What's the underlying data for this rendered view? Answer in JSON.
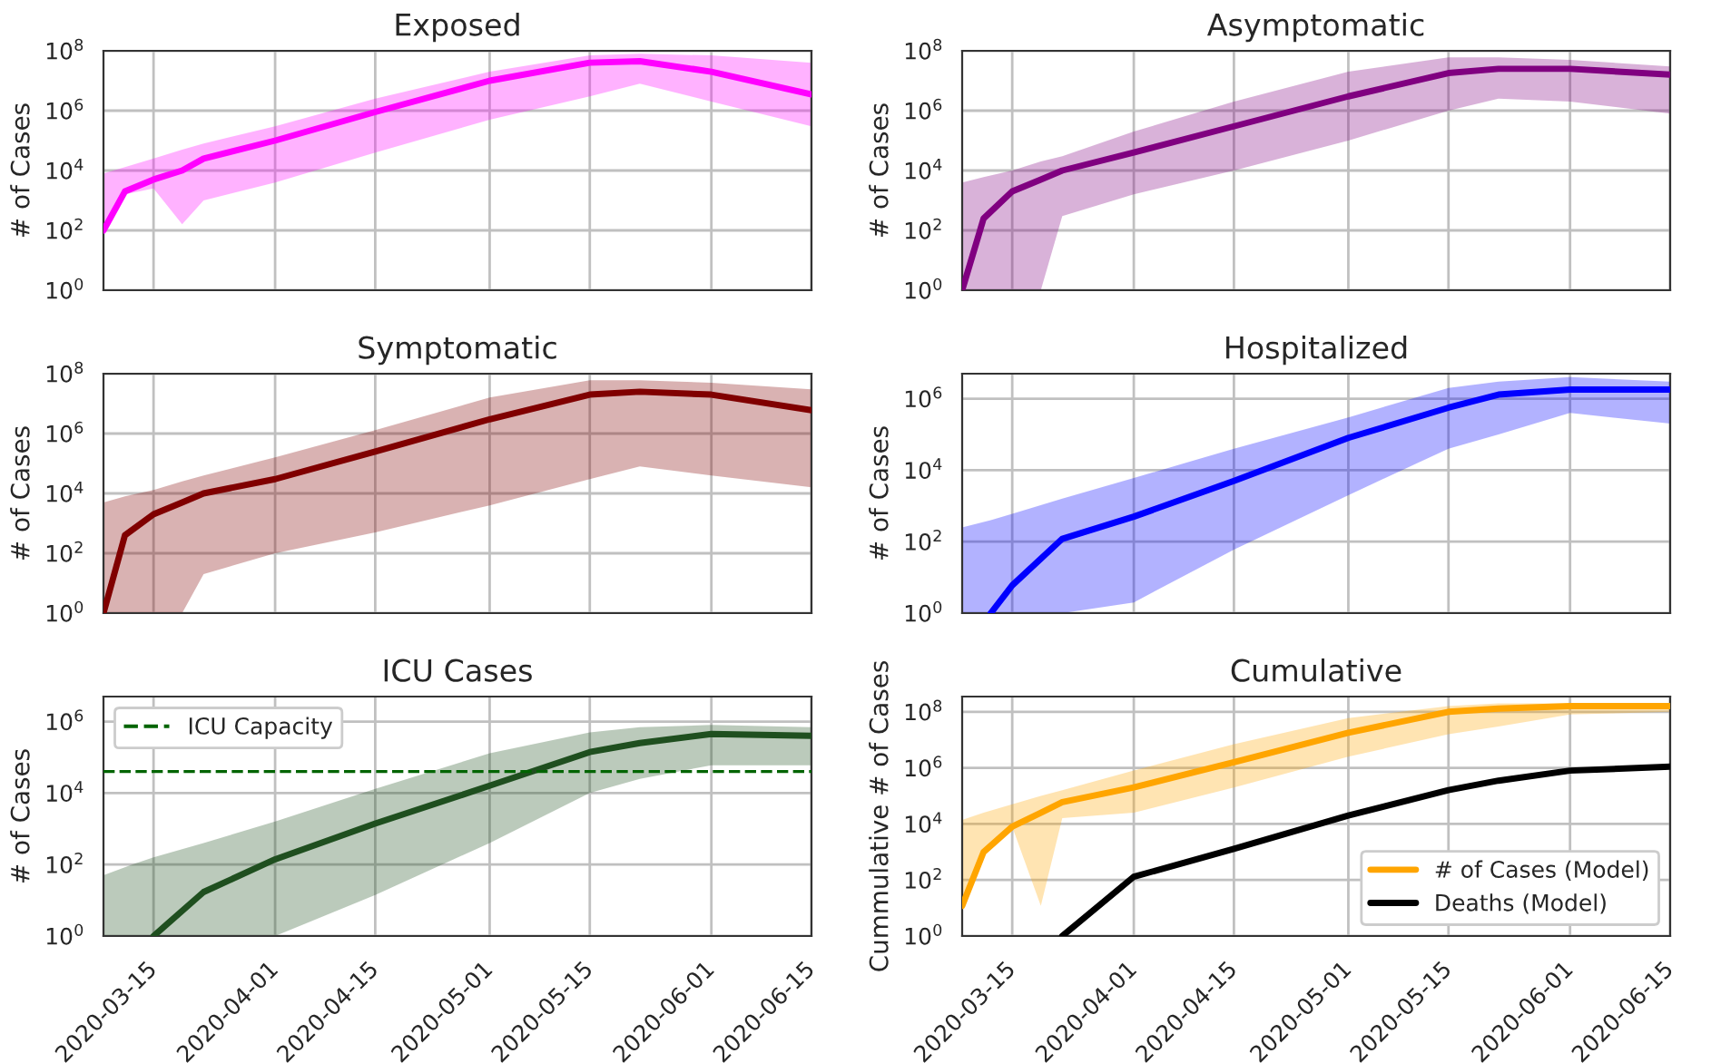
{
  "chart_data": [
    {
      "type": "line",
      "title": "Exposed",
      "ylabel": "# of Cases",
      "log": true,
      "grid": true,
      "tick_labels": "y",
      "x": [
        "2020-03-08",
        "2020-03-11",
        "2020-03-15",
        "2020-03-19",
        "2020-03-22",
        "2020-04-01",
        "2020-04-15",
        "2020-05-01",
        "2020-05-15",
        "2020-05-22",
        "2020-06-01",
        "2020-06-15"
      ],
      "xlim": [
        "2020-03-08",
        "2020-06-15"
      ],
      "xticks": [
        "2020-03-15",
        "2020-04-01",
        "2020-04-15",
        "2020-05-01",
        "2020-05-15",
        "2020-06-01",
        "2020-06-15"
      ],
      "ylim": [
        1,
        100000000
      ],
      "yticks": [
        {
          "value": 1,
          "label": "10$^{0}$"
        },
        {
          "value": 100,
          "label": "10$^{2}$"
        },
        {
          "value": 10000,
          "label": "10$^{4}$"
        },
        {
          "value": 1000000,
          "label": "10$^{6}$"
        },
        {
          "value": 100000000,
          "label": "10$^{8}$"
        }
      ],
      "series": [
        {
          "color": "#ff00ff",
          "values": [
            100,
            2000,
            5000,
            10000,
            25000,
            100000,
            900000,
            10000000,
            40000000,
            45000000,
            20000000,
            3500000
          ],
          "upper": [
            8000,
            13000,
            25000,
            50000,
            80000,
            300000,
            2500000,
            20000000,
            70000000,
            80000000,
            70000000,
            40000000
          ],
          "lower": [
            100,
            1600,
            2500,
            160,
            1000,
            4000,
            40000,
            500000,
            3000000,
            8000000,
            2000000,
            300000
          ]
        }
      ]
    },
    {
      "type": "line",
      "title": "Asymptomatic",
      "ylabel": "# of Cases",
      "log": true,
      "grid": true,
      "tick_labels": "y",
      "x": [
        "2020-03-08",
        "2020-03-11",
        "2020-03-15",
        "2020-03-19",
        "2020-03-22",
        "2020-04-01",
        "2020-04-15",
        "2020-05-01",
        "2020-05-15",
        "2020-05-22",
        "2020-06-01",
        "2020-06-15"
      ],
      "xlim": [
        "2020-03-08",
        "2020-06-15"
      ],
      "xticks": [
        "2020-03-15",
        "2020-04-01",
        "2020-04-15",
        "2020-05-01",
        "2020-05-15",
        "2020-06-01",
        "2020-06-15"
      ],
      "ylim": [
        1,
        100000000
      ],
      "yticks": [
        {
          "value": 1,
          "label": "10$^{0}$"
        },
        {
          "value": 100,
          "label": "10$^{2}$"
        },
        {
          "value": 10000,
          "label": "10$^{4}$"
        },
        {
          "value": 1000000,
          "label": "10$^{6}$"
        },
        {
          "value": 100000000,
          "label": "10$^{8}$"
        }
      ],
      "series": [
        {
          "color": "#800080",
          "values": [
            1,
            250,
            2000,
            5000,
            10000,
            40000,
            300000,
            3000000,
            18000000,
            25000000,
            25000000,
            16000000
          ],
          "upper": [
            4000,
            6000,
            10000,
            20000,
            30000,
            200000,
            2000000,
            20000000,
            60000000,
            60000000,
            50000000,
            30000000
          ],
          "lower": [
            1,
            1,
            1,
            1,
            300,
            1600,
            10000,
            100000,
            1000000,
            2500000,
            2000000,
            800000
          ]
        }
      ]
    },
    {
      "type": "line",
      "title": "Symptomatic",
      "ylabel": "# of Cases",
      "log": true,
      "grid": true,
      "tick_labels": "y",
      "x": [
        "2020-03-08",
        "2020-03-11",
        "2020-03-15",
        "2020-03-19",
        "2020-03-22",
        "2020-04-01",
        "2020-04-15",
        "2020-05-01",
        "2020-05-15",
        "2020-05-22",
        "2020-06-01",
        "2020-06-15"
      ],
      "xlim": [
        "2020-03-08",
        "2020-06-15"
      ],
      "xticks": [
        "2020-03-15",
        "2020-04-01",
        "2020-04-15",
        "2020-05-01",
        "2020-05-15",
        "2020-06-01",
        "2020-06-15"
      ],
      "ylim": [
        1,
        100000000
      ],
      "yticks": [
        {
          "value": 1,
          "label": "10$^{0}$"
        },
        {
          "value": 100,
          "label": "10$^{2}$"
        },
        {
          "value": 10000,
          "label": "10$^{4}$"
        },
        {
          "value": 1000000,
          "label": "10$^{6}$"
        },
        {
          "value": 100000000,
          "label": "10$^{8}$"
        }
      ],
      "series": [
        {
          "color": "#800000",
          "values": [
            1,
            400,
            2000,
            5000,
            10000,
            30000,
            250000,
            3000000,
            20000000,
            25000000,
            20000000,
            6000000
          ],
          "upper": [
            5000,
            8000,
            13000,
            25000,
            40000,
            160000,
            1300000,
            16000000,
            60000000,
            60000000,
            50000000,
            30000000
          ],
          "lower": [
            1,
            1,
            1,
            1,
            20,
            100,
            500,
            4000,
            30000,
            80000,
            40000,
            16000
          ]
        }
      ]
    },
    {
      "type": "line",
      "title": "Hospitalized",
      "ylabel": "# of Cases",
      "log": true,
      "grid": true,
      "tick_labels": "y",
      "x": [
        "2020-03-08",
        "2020-03-12",
        "2020-03-15",
        "2020-03-22",
        "2020-04-01",
        "2020-04-15",
        "2020-05-01",
        "2020-05-15",
        "2020-05-22",
        "2020-06-01",
        "2020-06-15"
      ],
      "xlim": [
        "2020-03-08",
        "2020-06-15"
      ],
      "xticks": [
        "2020-03-15",
        "2020-04-01",
        "2020-04-15",
        "2020-05-01",
        "2020-05-15",
        "2020-06-01",
        "2020-06-15"
      ],
      "ylim": [
        1,
        5000000
      ],
      "yticks": [
        {
          "value": 1,
          "label": "10$^{0}$"
        },
        {
          "value": 100,
          "label": "10$^{2}$"
        },
        {
          "value": 10000,
          "label": "10$^{4}$"
        },
        {
          "value": 1000000,
          "label": "10$^{6}$"
        }
      ],
      "series": [
        {
          "color": "#0000ff",
          "values": [
            null,
            1,
            6,
            120,
            500,
            5000,
            80000,
            560000,
            1300000,
            1800000,
            1800000
          ],
          "upper": [
            250,
            400,
            600,
            1600,
            6000,
            40000,
            300000,
            2000000,
            3000000,
            4000000,
            3000000
          ],
          "lower": [
            1,
            1,
            1,
            1,
            2,
            60,
            2000,
            40000,
            100000,
            400000,
            200000
          ]
        }
      ]
    },
    {
      "type": "line",
      "title": "ICU Cases",
      "ylabel": "# of Cases",
      "log": true,
      "grid": true,
      "legend": "top left",
      "x": [
        "2020-03-08",
        "2020-03-12",
        "2020-03-15",
        "2020-03-22",
        "2020-04-01",
        "2020-04-15",
        "2020-05-01",
        "2020-05-15",
        "2020-05-22",
        "2020-06-01",
        "2020-06-15"
      ],
      "xlim": [
        "2020-03-08",
        "2020-06-15"
      ],
      "xticks": [
        "2020-03-15",
        "2020-04-01",
        "2020-04-15",
        "2020-05-01",
        "2020-05-15",
        "2020-06-01",
        "2020-06-15"
      ],
      "ylim": [
        1,
        5000000
      ],
      "yticks": [
        {
          "value": 1,
          "label": "10$^{0}$"
        },
        {
          "value": 100,
          "label": "10$^{2}$"
        },
        {
          "value": 10000,
          "label": "10$^{4}$"
        },
        {
          "value": 1000000,
          "label": "10$^{6}$"
        }
      ],
      "ref_lines": [
        {
          "axis": "y",
          "value": 40000,
          "label": "ICU Capacity",
          "color": "#006400",
          "line_style": "dashed"
        }
      ],
      "series": [
        {
          "color": "#1f4f1f",
          "values": [
            null,
            null,
            1,
            17,
            140,
            1400,
            16000,
            140000,
            250000,
            450000,
            400000
          ],
          "upper": [
            50,
            100,
            160,
            400,
            1600,
            13000,
            130000,
            500000,
            700000,
            800000,
            700000
          ],
          "lower": [
            1,
            1,
            1,
            1,
            1,
            14,
            400,
            10000,
            25000,
            60000,
            60000
          ]
        }
      ]
    },
    {
      "type": "line",
      "title": "Cumulative",
      "ylabel": "Cummulative # of Cases",
      "log": true,
      "grid": true,
      "legend": "bottom right",
      "x": [
        "2020-03-08",
        "2020-03-11",
        "2020-03-15",
        "2020-03-19",
        "2020-03-22",
        "2020-04-01",
        "2020-04-15",
        "2020-05-01",
        "2020-05-15",
        "2020-05-22",
        "2020-06-01",
        "2020-06-15"
      ],
      "xlim": [
        "2020-03-08",
        "2020-06-15"
      ],
      "xticks": [
        "2020-03-15",
        "2020-04-01",
        "2020-04-15",
        "2020-05-01",
        "2020-05-15",
        "2020-06-01",
        "2020-06-15"
      ],
      "ylim": [
        1,
        350000000
      ],
      "yticks": [
        {
          "value": 1,
          "label": "10$^{0}$"
        },
        {
          "value": 100,
          "label": "10$^{2}$"
        },
        {
          "value": 10000,
          "label": "10$^{4}$"
        },
        {
          "value": 1000000,
          "label": "10$^{6}$"
        },
        {
          "value": 100000000,
          "label": "10$^{8}$"
        }
      ],
      "series": [
        {
          "name": "# of Cases (Model)",
          "color": "#ffa500",
          "values": [
            12,
            1000,
            8000,
            25000,
            60000,
            200000,
            1600000,
            18000000,
            100000000,
            130000000,
            160000000,
            160000000
          ],
          "upper": [
            14000,
            25000,
            50000,
            100000,
            160000,
            800000,
            7000000,
            60000000,
            160000000,
            200000000,
            200000000,
            200000000
          ],
          "lower": [
            12,
            1000,
            8000,
            12,
            16000,
            25000,
            200000,
            2500000,
            16000000,
            30000000,
            80000000,
            100000000
          ]
        },
        {
          "name": "Deaths (Model)",
          "color": "#000000",
          "values": [
            null,
            null,
            null,
            null,
            1,
            130,
            1300,
            20000,
            160000,
            350000,
            800000,
            1100000
          ]
        }
      ]
    }
  ]
}
